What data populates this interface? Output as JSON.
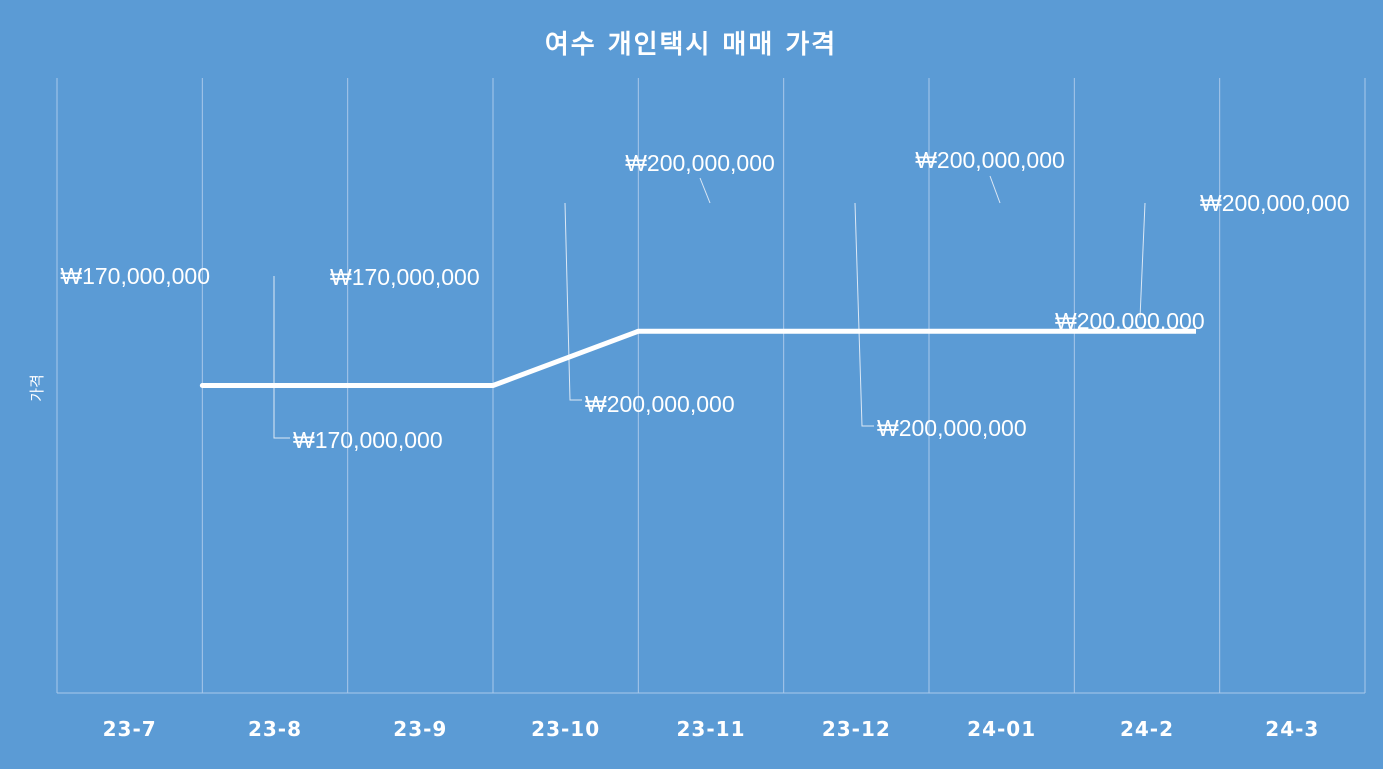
{
  "chart_data": {
    "type": "line",
    "title": "여수 개인택시 매매 가격",
    "xlabel": "",
    "ylabel": "가격",
    "categories": [
      "23-7",
      "23-8",
      "23-9",
      "23-10",
      "23-11",
      "23-12",
      "24-01",
      "24-2",
      "24-3"
    ],
    "series": [
      {
        "values": [
          170000000,
          170000000,
          170000000,
          200000000,
          200000000,
          200000000,
          200000000,
          200000000,
          200000000
        ]
      }
    ],
    "data_labels": [
      "₩170,000,000",
      "₩170,000,000",
      "₩170,000,000",
      "₩200,000,000",
      "₩200,000,000",
      "₩200,000,000",
      "₩200,000,000",
      "₩200,000,000",
      "₩200,000,000"
    ],
    "grid": true,
    "legend": "none",
    "colors": {
      "background": "#5B9BD5",
      "line": "#FFFFFF",
      "text": "#FFFFFF",
      "grid": "#A9C8EA"
    }
  }
}
